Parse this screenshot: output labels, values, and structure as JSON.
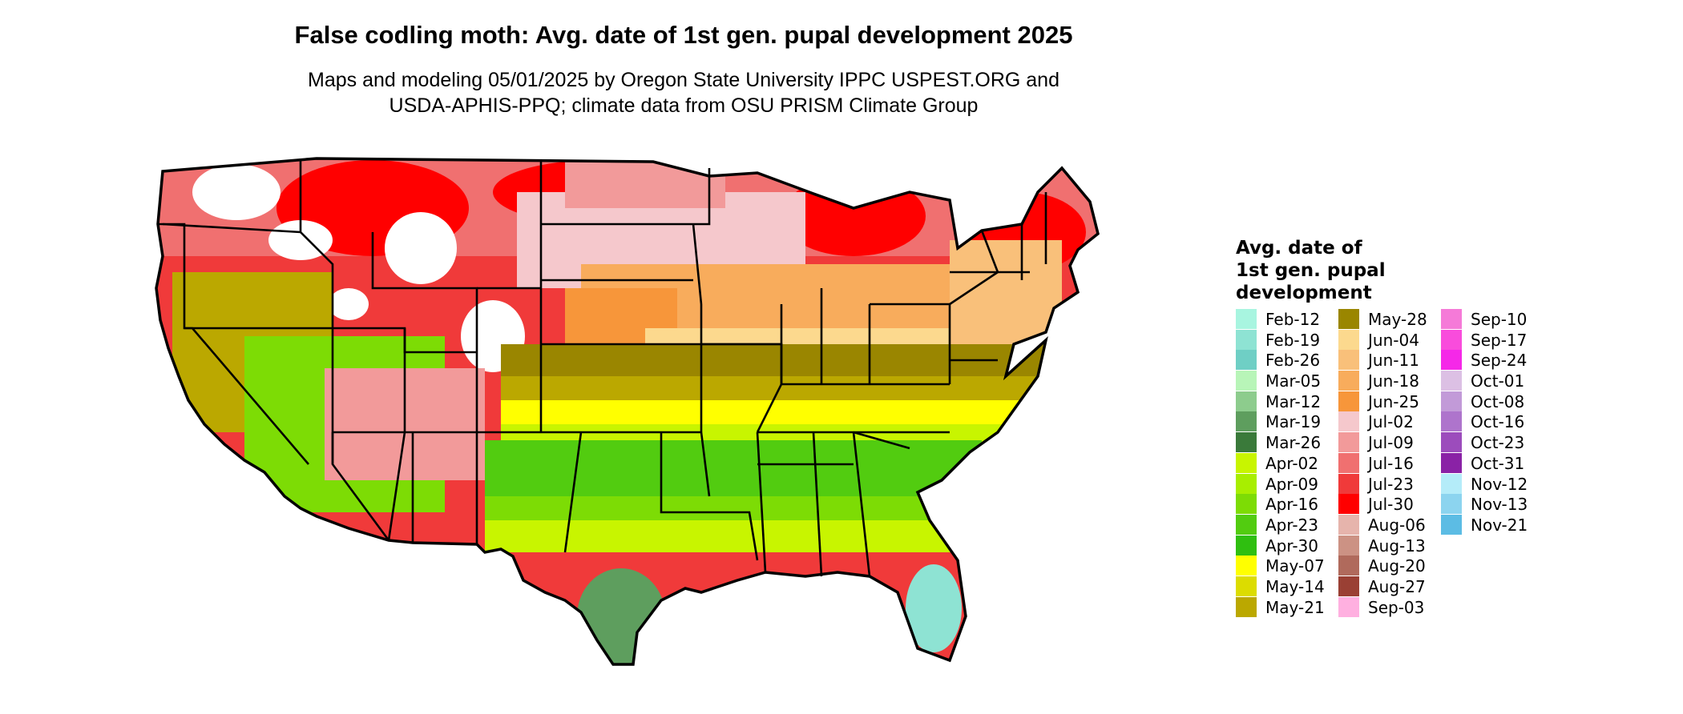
{
  "title": "False codling moth: Avg. date of 1st gen. pupal development 2025",
  "subtitle_lines": [
    "Maps and modeling 05/01/2025 by Oregon State University IPPC USPEST.ORG and",
    "USDA-APHIS-PPQ; climate data from OSU PRISM Climate Group"
  ],
  "legend": {
    "title_lines": [
      "Avg. date of",
      "1st gen. pupal",
      "development"
    ],
    "items": [
      {
        "label": "Feb-12",
        "color": "#a8f5e0"
      },
      {
        "label": "Feb-19",
        "color": "#8ee3d3"
      },
      {
        "label": "Feb-26",
        "color": "#6fcfc5"
      },
      {
        "label": "Mar-05",
        "color": "#b8f5b8"
      },
      {
        "label": "Mar-12",
        "color": "#8dcc8d"
      },
      {
        "label": "Mar-19",
        "color": "#5e9e5e"
      },
      {
        "label": "Mar-26",
        "color": "#3a7a3a"
      },
      {
        "label": "Apr-02",
        "color": "#c8f500"
      },
      {
        "label": "Apr-09",
        "color": "#a8ee00"
      },
      {
        "label": "Apr-16",
        "color": "#7ddc05"
      },
      {
        "label": "Apr-23",
        "color": "#52cc10"
      },
      {
        "label": "Apr-30",
        "color": "#2fbf10"
      },
      {
        "label": "May-07",
        "color": "#ffff00"
      },
      {
        "label": "May-14",
        "color": "#dcdc00"
      },
      {
        "label": "May-21",
        "color": "#bba800"
      },
      {
        "label": "May-28",
        "color": "#9a8600"
      },
      {
        "label": "Jun-04",
        "color": "#fcd98e"
      },
      {
        "label": "Jun-11",
        "color": "#f9c07a"
      },
      {
        "label": "Jun-18",
        "color": "#f8ac5c"
      },
      {
        "label": "Jun-25",
        "color": "#f7963a"
      },
      {
        "label": "Jul-02",
        "color": "#f5c8cc"
      },
      {
        "label": "Jul-09",
        "color": "#f29a9a"
      },
      {
        "label": "Jul-16",
        "color": "#f07070"
      },
      {
        "label": "Jul-23",
        "color": "#f03a3a"
      },
      {
        "label": "Jul-30",
        "color": "#ff0000"
      },
      {
        "label": "Aug-06",
        "color": "#e6b4ac"
      },
      {
        "label": "Aug-13",
        "color": "#cc9284"
      },
      {
        "label": "Aug-20",
        "color": "#b06a5c"
      },
      {
        "label": "Aug-27",
        "color": "#9a4034"
      },
      {
        "label": "Sep-03",
        "color": "#ffb0e0"
      },
      {
        "label": "Sep-10",
        "color": "#f57ad8"
      },
      {
        "label": "Sep-17",
        "color": "#f94cdc"
      },
      {
        "label": "Sep-24",
        "color": "#f528e8"
      },
      {
        "label": "Oct-01",
        "color": "#dcc0e4"
      },
      {
        "label": "Oct-08",
        "color": "#c29ad8"
      },
      {
        "label": "Oct-16",
        "color": "#ae74cc"
      },
      {
        "label": "Oct-23",
        "color": "#9c4cbc"
      },
      {
        "label": "Oct-31",
        "color": "#8a22a6"
      },
      {
        "label": "Nov-12",
        "color": "#b4ecf9"
      },
      {
        "label": "Nov-13",
        "color": "#8cd4ef"
      },
      {
        "label": "Nov-21",
        "color": "#5cbce4"
      }
    ]
  }
}
